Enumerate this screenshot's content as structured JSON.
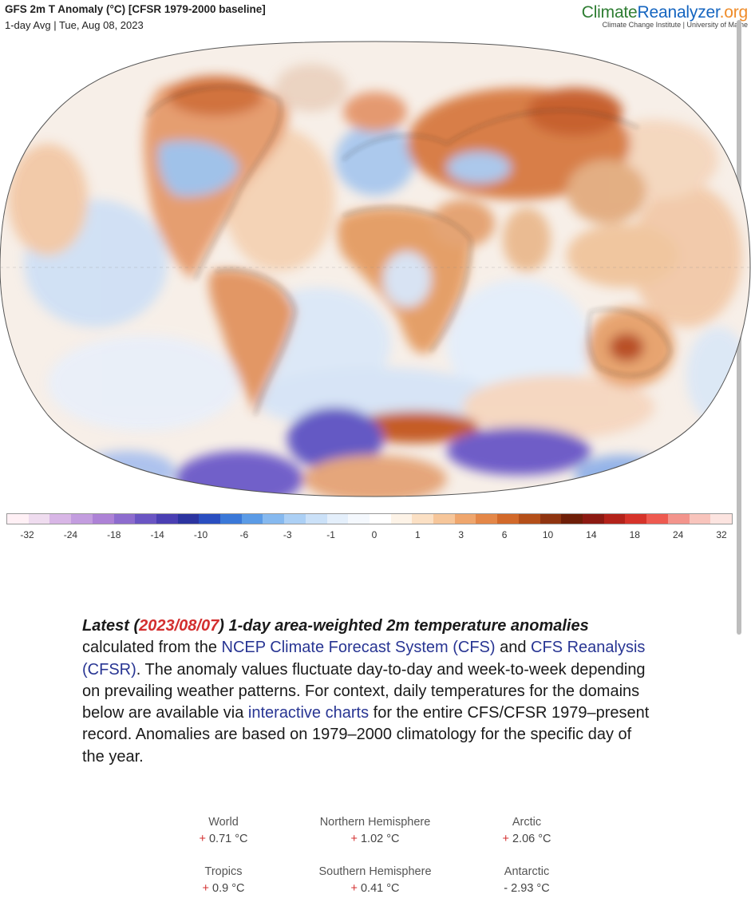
{
  "header": {
    "title": "GFS 2m T Anomaly (°C) [CFSR 1979-2000 baseline]",
    "subtitle": "1-day Avg | Tue, Aug 08, 2023",
    "brand_part1": "Climate",
    "brand_part2": "Reanalyzer",
    "brand_part3": ".org",
    "brand_sub": "Climate Change Institute | University of Maine"
  },
  "colorbar": {
    "ticks": [
      "-32",
      "-24",
      "-18",
      "-14",
      "-10",
      "-6",
      "-3",
      "-1",
      "0",
      "1",
      "3",
      "6",
      "10",
      "14",
      "18",
      "24",
      "32"
    ],
    "colors": [
      "#fff0f5",
      "#efdcef",
      "#d8b6e6",
      "#c39ddf",
      "#ad82d6",
      "#8d6cce",
      "#6a55c3",
      "#4a3fb3",
      "#2c34a0",
      "#2a4ec0",
      "#3a78d8",
      "#5b9be6",
      "#86b9ef",
      "#acd0f5",
      "#cbe1f8",
      "#e4effb",
      "#f4f8fd",
      "#ffffff",
      "#fdf3e7",
      "#fbe0c4",
      "#f6c69a",
      "#efa66d",
      "#e48748",
      "#d2692a",
      "#b44f19",
      "#8f3410",
      "#6e1e08",
      "#8c1a12",
      "#b3221a",
      "#d6332a",
      "#ee5a50",
      "#f3948c",
      "#f8c4bc",
      "#fce4e0"
    ]
  },
  "description": {
    "lead_bold_1": "Latest (",
    "lead_date": "2023/08/07",
    "lead_bold_2": ") 1-day area-weighted 2m temperature anomalies",
    "text_1": " calculated from the ",
    "link_1": "NCEP Climate Forecast System (CFS)",
    "text_2": " and ",
    "link_2": "CFS Reanalysis (CFSR)",
    "text_3": ". The anomaly values fluctuate day-to-day and week-to-week depending on prevailing weather patterns. For context, daily temperatures for the domains below are available via ",
    "link_3": "interactive charts",
    "text_4": " for the entire CFS/CFSR 1979–present record. Anomalies are based on 1979–2000 climatology for the specific day of the year."
  },
  "stats": [
    {
      "label": "World",
      "sign": "+",
      "value": "0.71 °C"
    },
    {
      "label": "Northern Hemisphere",
      "sign": "+",
      "value": "1.02 °C"
    },
    {
      "label": "Arctic",
      "sign": "+",
      "value": "2.06 °C"
    },
    {
      "label": "Tropics",
      "sign": "+",
      "value": "0.9 °C"
    },
    {
      "label": "Southern Hemisphere",
      "sign": "+",
      "value": "0.41 °C"
    },
    {
      "label": "Antarctic",
      "sign": "-",
      "value": "2.93 °C"
    }
  ]
}
